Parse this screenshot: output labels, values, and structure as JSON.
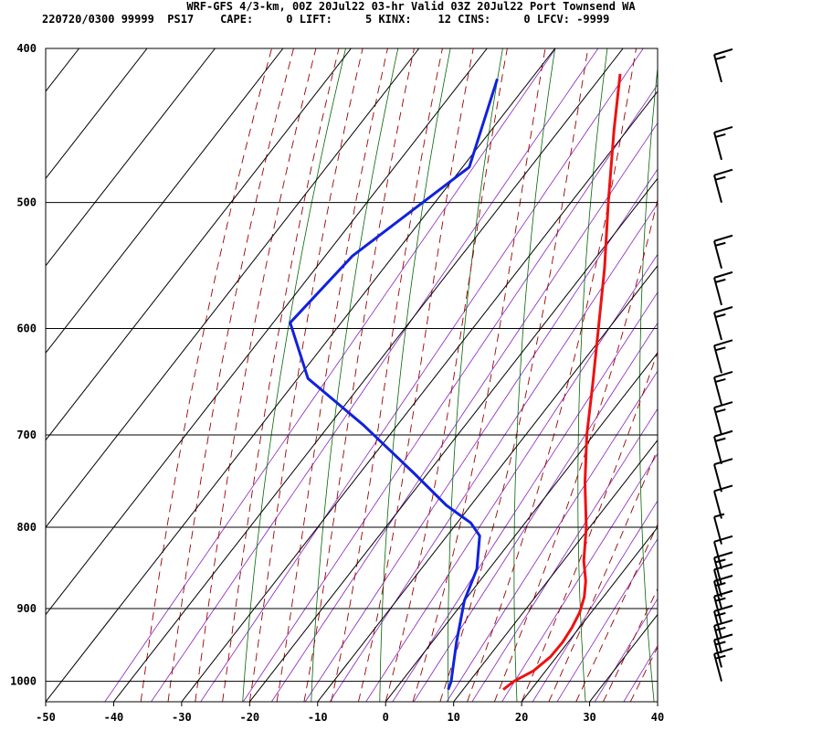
{
  "header": {
    "title": "WRF-GFS 4/3-km, 00Z 20Jul22 03-hr Valid 03Z 20Jul22 Port Townsend WA",
    "stats": "220720/0300 99999  PS17    CAPE:     0 LIFT:     5 KINX:    12 CINS:     0 LFCV: -9999"
  },
  "colors": {
    "temperature": "#ee1111",
    "dewpoint": "#1122dd",
    "isotherm_grid": "#000000",
    "dry_adiabat": "#006600",
    "moist_adiabat": "#990000",
    "mixing_ratio": "#8822bb",
    "wind_barb": "#000000"
  },
  "chart_data": {
    "type": "skew-t",
    "x_axis": {
      "unit": "degC",
      "range": [
        -50,
        40
      ],
      "ticks": [
        -50,
        -40,
        -30,
        -20,
        -10,
        0,
        10,
        20,
        30,
        40
      ]
    },
    "y_axis": {
      "unit": "hPa",
      "scale": "log",
      "range": [
        1030,
        400
      ],
      "ticks": [
        400,
        500,
        600,
        700,
        800,
        900,
        1000
      ]
    },
    "grid": true,
    "temperature_profile": {
      "points": [
        {
          "p": 1012,
          "t": 15.9
        },
        {
          "p": 1000,
          "t": 16.5
        },
        {
          "p": 985,
          "t": 18.2
        },
        {
          "p": 965,
          "t": 19.1
        },
        {
          "p": 945,
          "t": 19.2
        },
        {
          "p": 925,
          "t": 18.9
        },
        {
          "p": 905,
          "t": 18.3
        },
        {
          "p": 885,
          "t": 17.2
        },
        {
          "p": 865,
          "t": 15.6
        },
        {
          "p": 840,
          "t": 13.0
        },
        {
          "p": 800,
          "t": 9.5
        },
        {
          "p": 750,
          "t": 4.2
        },
        {
          "p": 700,
          "t": -1.0
        },
        {
          "p": 650,
          "t": -6.0
        },
        {
          "p": 600,
          "t": -11.5
        },
        {
          "p": 550,
          "t": -17.5
        },
        {
          "p": 500,
          "t": -24.5
        },
        {
          "p": 450,
          "t": -32.0
        },
        {
          "p": 415,
          "t": -37.5
        }
      ]
    },
    "dewpoint_profile": {
      "points": [
        {
          "p": 1012,
          "t": 7.8
        },
        {
          "p": 1000,
          "t": 7.3
        },
        {
          "p": 985,
          "t": 6.3
        },
        {
          "p": 945,
          "t": 3.6
        },
        {
          "p": 905,
          "t": 1.0
        },
        {
          "p": 890,
          "t": 0.0
        },
        {
          "p": 850,
          "t": -1.8
        },
        {
          "p": 810,
          "t": -5.2
        },
        {
          "p": 795,
          "t": -8.0
        },
        {
          "p": 775,
          "t": -13.6
        },
        {
          "p": 740,
          "t": -22.0
        },
        {
          "p": 690,
          "t": -35.0
        },
        {
          "p": 645,
          "t": -48.5
        },
        {
          "p": 595,
          "t": -57.5
        },
        {
          "p": 540,
          "t": -56.0
        },
        {
          "p": 475,
          "t": -49.0
        },
        {
          "p": 418,
          "t": -55.0
        }
      ]
    },
    "wind_profile": {
      "levels_hpa": [
        1000,
        980,
        960,
        940,
        920,
        900,
        885,
        870,
        850,
        820,
        790,
        760,
        730,
        700,
        670,
        640,
        610,
        580,
        550,
        500,
        470,
        420
      ],
      "speeds_kt": [
        15,
        15,
        15,
        15,
        15,
        15,
        10,
        15,
        10,
        5,
        10,
        10,
        15,
        15,
        15,
        15,
        15,
        15,
        15,
        15,
        15,
        15
      ]
    }
  }
}
